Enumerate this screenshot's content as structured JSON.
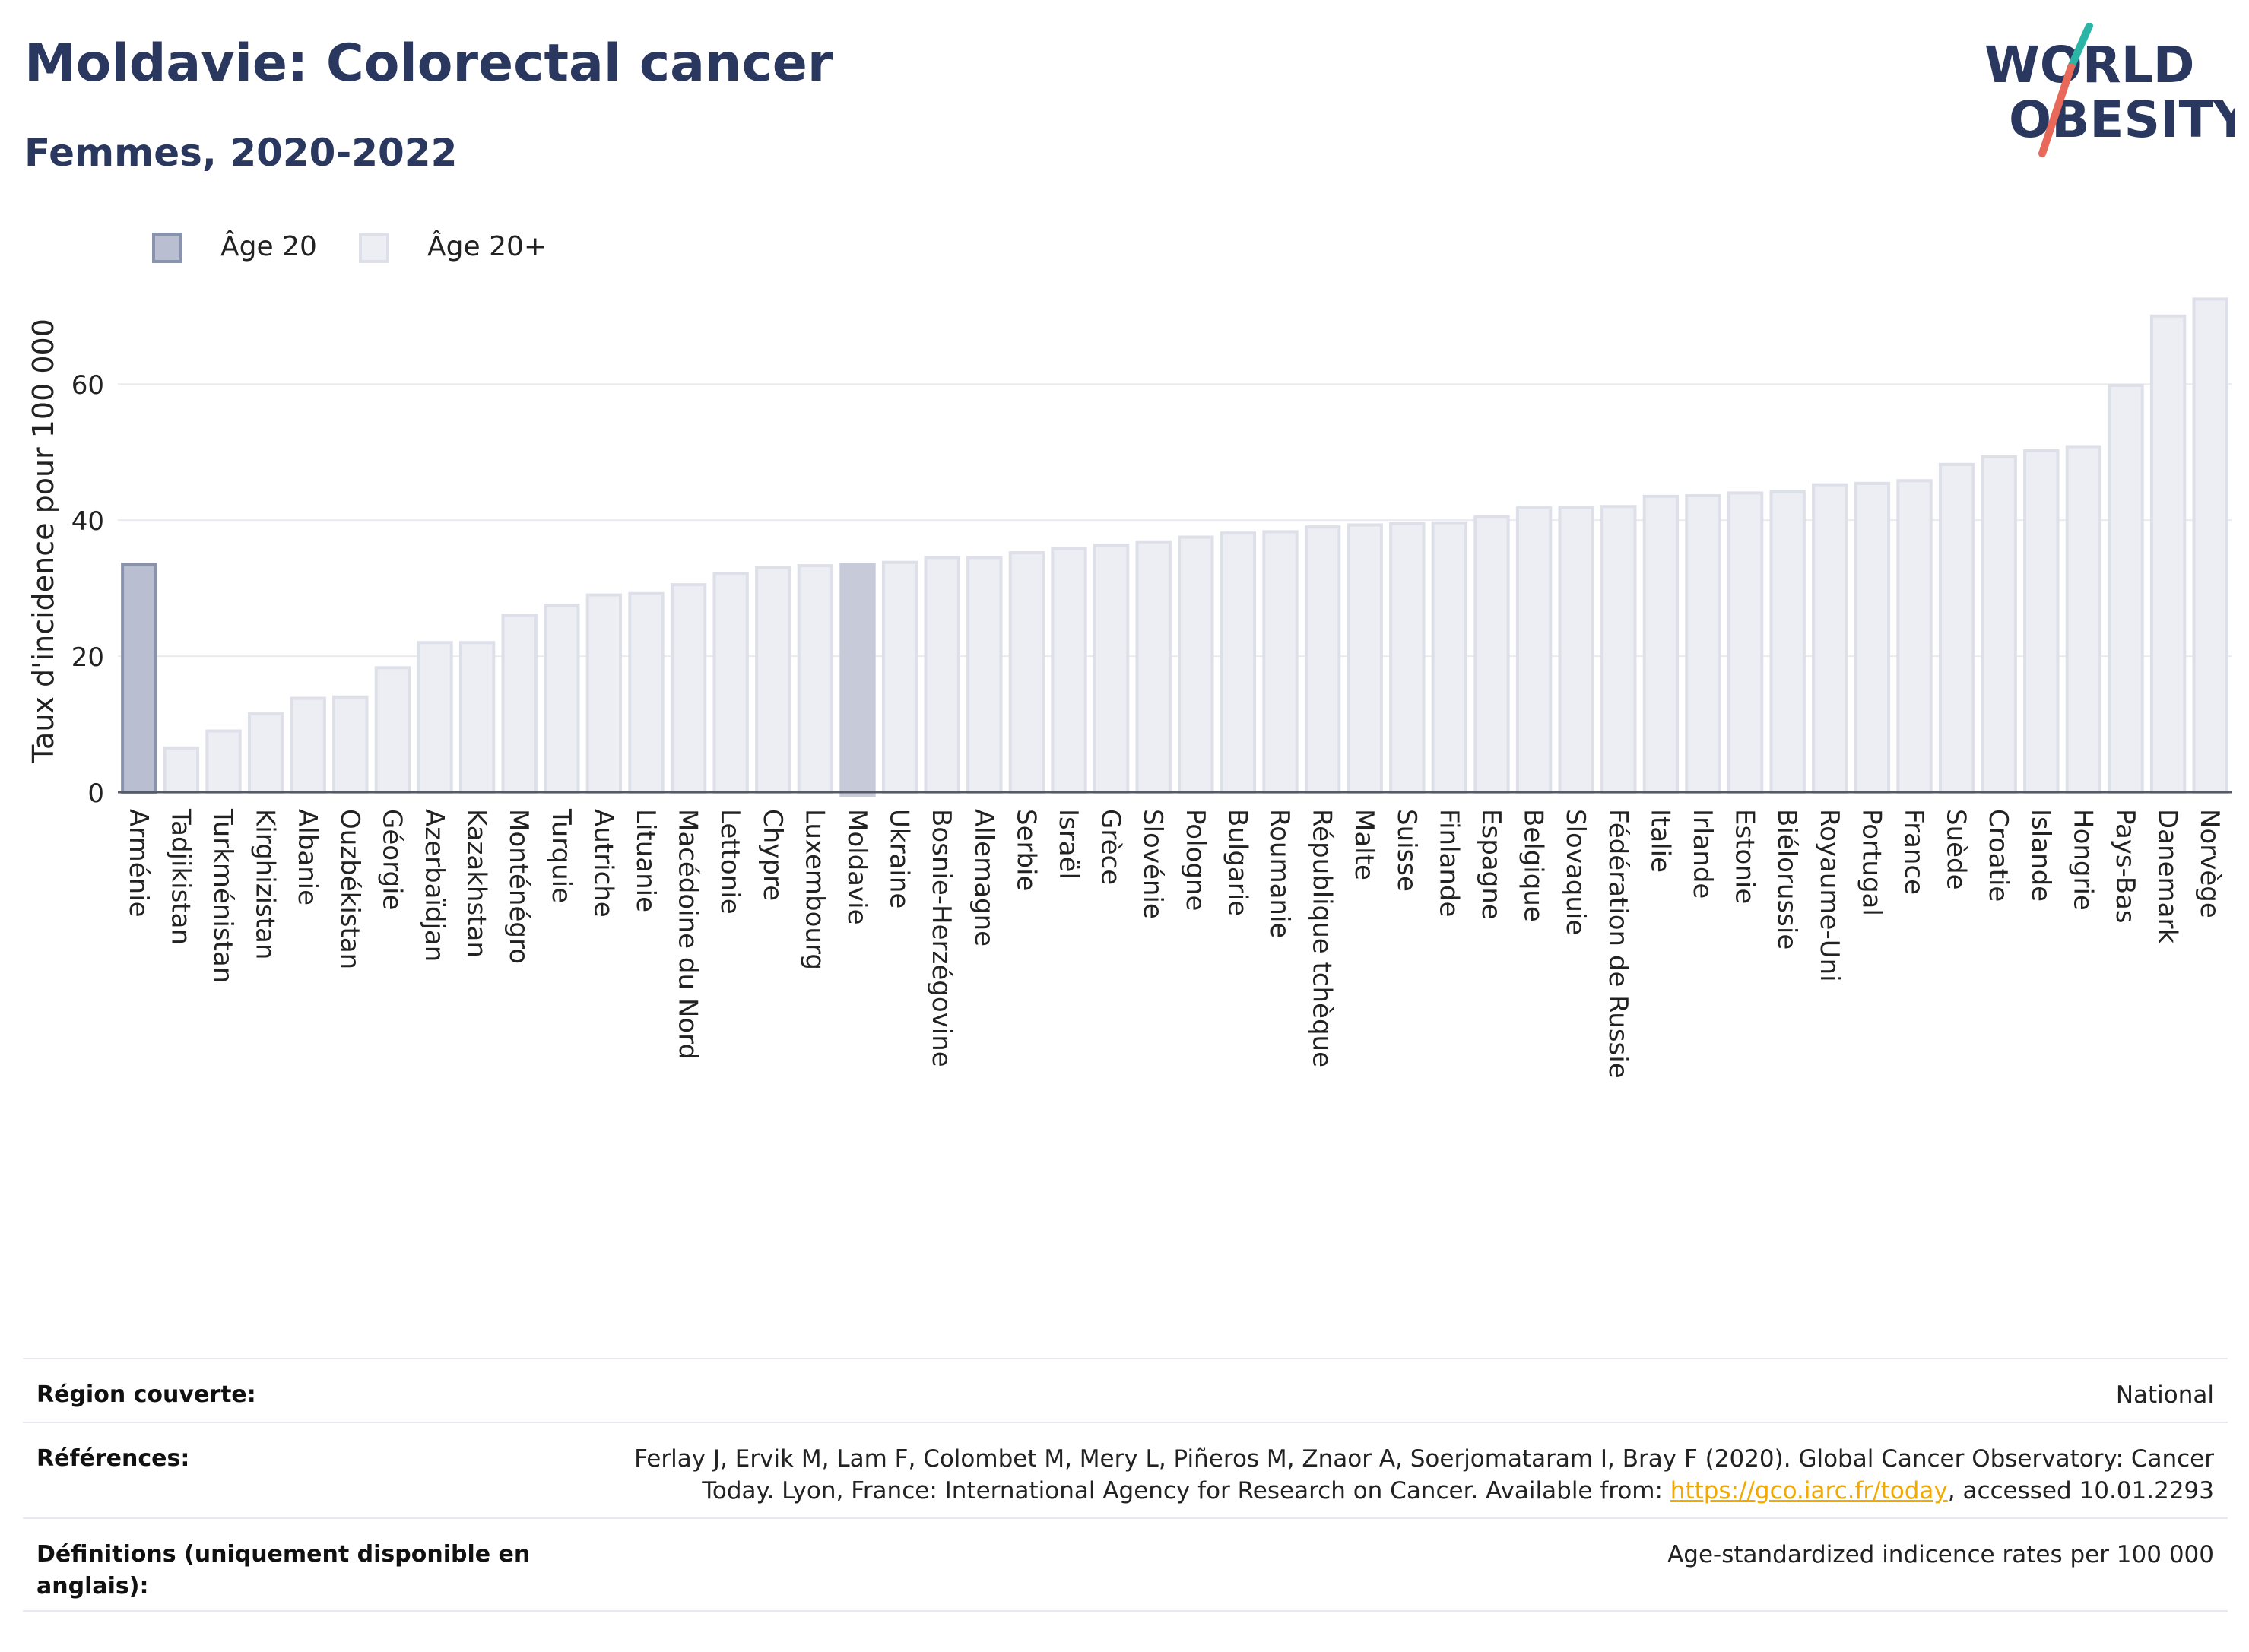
{
  "header": {
    "title": "Moldavie: Colorectal cancer",
    "subtitle": "Femmes, 2020-2022"
  },
  "logo": {
    "line1": "WORLD",
    "line2": "OBESITY",
    "colors": {
      "text": "#2a3860",
      "accent1": "#2bb5a7",
      "accent2": "#e8685a"
    }
  },
  "legend": {
    "items": [
      {
        "label": "Âge 20",
        "color": "#b9bfd0",
        "border": "#8a93ad"
      },
      {
        "label": "Âge 20+",
        "color": "#eceef3",
        "border": "#dde0e8"
      }
    ]
  },
  "chart_data": {
    "type": "bar",
    "ylabel": "Taux d'incidence pour 100 000",
    "ylim": [
      0,
      74
    ],
    "yticks": [
      0,
      20,
      40,
      60
    ],
    "grid": true,
    "legend_position": "top-left",
    "highlight": "Moldavie",
    "categories": [
      "Arménie",
      "Tadjikistan",
      "Turkménistan",
      "Kirghizistan",
      "Albanie",
      "Ouzbékistan",
      "Géorgie",
      "Azerbaïdjan",
      "Kazakhstan",
      "Monténégro",
      "Turquie",
      "Autriche",
      "Lituanie",
      "Macédoine du Nord",
      "Lettonie",
      "Chypre",
      "Luxembourg",
      "Moldavie",
      "Ukraine",
      "Bosnie-Herzégovine",
      "Allemagne",
      "Serbie",
      "Israël",
      "Grèce",
      "Slovénie",
      "Pologne",
      "Bulgarie",
      "Roumanie",
      "République tchèque",
      "Malte",
      "Suisse",
      "Finlande",
      "Espagne",
      "Belgique",
      "Slovaquie",
      "Fédération de Russie",
      "Italie",
      "Irlande",
      "Estonie",
      "Biélorussie",
      "Royaume-Uni",
      "Portugal",
      "France",
      "Suède",
      "Croatie",
      "Islande",
      "Hongrie",
      "Pays-Bas",
      "Danemark",
      "Norvège"
    ],
    "series": [
      {
        "name": "Âge 20",
        "values": [
          33.5,
          null,
          null,
          null,
          null,
          null,
          null,
          null,
          null,
          null,
          null,
          null,
          null,
          null,
          null,
          null,
          null,
          null,
          null,
          null,
          null,
          null,
          null,
          null,
          null,
          null,
          null,
          null,
          null,
          null,
          null,
          null,
          null,
          null,
          null,
          null,
          null,
          null,
          null,
          null,
          null,
          null,
          null,
          null,
          null,
          null,
          null,
          null,
          null,
          null
        ]
      },
      {
        "name": "Âge 20+",
        "values": [
          null,
          6.5,
          9,
          11.5,
          13.8,
          14,
          18.3,
          22,
          22,
          26,
          27.5,
          29,
          29.2,
          30.5,
          32.2,
          33,
          33.3,
          33.5,
          33.8,
          34.5,
          34.5,
          35.2,
          35.8,
          36.3,
          36.8,
          37.5,
          38.1,
          38.3,
          39,
          39.3,
          39.5,
          39.6,
          40.5,
          41.8,
          41.9,
          42,
          43.5,
          43.6,
          44,
          44.2,
          45.2,
          45.4,
          45.8,
          48.2,
          49.3,
          50.2,
          50.8,
          59.8,
          70,
          72.5
        ]
      }
    ]
  },
  "footer": {
    "rows": [
      {
        "label": "Région couverte:",
        "value": "National"
      },
      {
        "label": "Références:",
        "value_pre": "Ferlay J, Ervik M, Lam F, Colombet M, Mery L, Piñeros M, Znaor A, Soerjomataram I, Bray F (2020). Global Cancer Observatory: Cancer Today. Lyon, France: International Agency for Research on Cancer. Available from: ",
        "link": "https://gco.iarc.fr/today",
        "value_post": ", accessed 10.01.2293"
      },
      {
        "label": "Définitions (uniquement disponible en anglais):",
        "value": "Age-standardized indicence rates per 100 000"
      }
    ]
  }
}
